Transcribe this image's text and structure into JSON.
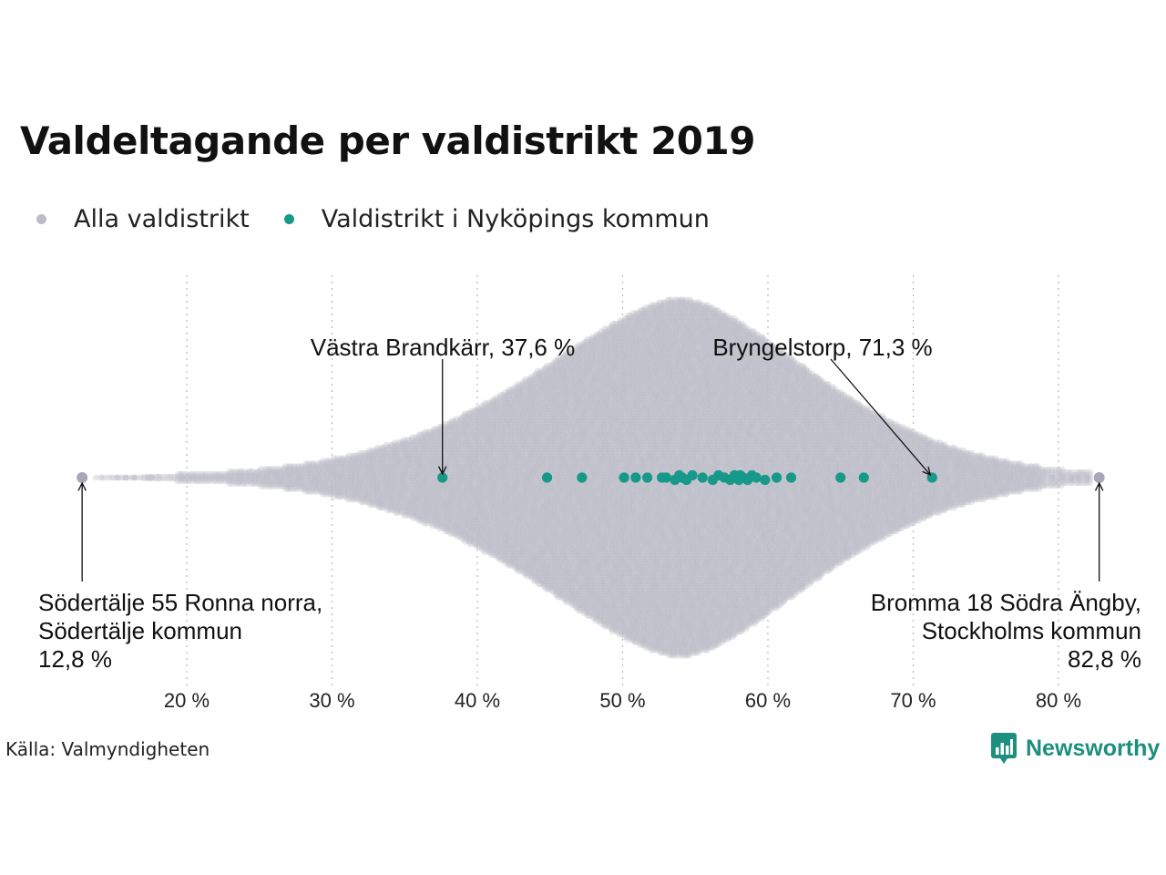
{
  "title": "Valdeltagande per valdistrikt 2019",
  "legend": [
    {
      "label": "Alla valdistrikt",
      "color": "#bdbcc9"
    },
    {
      "label": "Valdistrikt i Nyköpings kommun",
      "color": "#17998a"
    }
  ],
  "source": "Källa: Valmyndigheten",
  "brand": {
    "name": "Newsworthy",
    "icon": "bar-chart-logo-icon",
    "color": "#1d8f7e"
  },
  "chart_data": {
    "type": "scatter",
    "subtype": "beeswarm",
    "x_ticks": [
      20,
      30,
      40,
      50,
      60,
      70,
      80
    ],
    "x_tick_labels": [
      "20 %",
      "30 %",
      "40 %",
      "50 %",
      "60 %",
      "70 %",
      "80 %"
    ],
    "xlim": [
      10,
      85
    ],
    "grid": "vertical dotted",
    "series": [
      {
        "name": "Alla valdistrikt",
        "color": "#bdbcc9",
        "distribution": "approx. 6000 districts, peak near 54 %, range 12,8 – 82,8 %",
        "min": 12.8,
        "max": 82.8,
        "mode": 54
      },
      {
        "name": "Valdistrikt i Nyköpings kommun",
        "color": "#17998a",
        "values": [
          37.6,
          44.8,
          47.2,
          50.1,
          50.9,
          51.7,
          52.7,
          53.0,
          53.6,
          53.9,
          54.1,
          54.4,
          54.8,
          55.5,
          56.2,
          56.6,
          57.0,
          57.4,
          57.7,
          57.9,
          58.0,
          58.1,
          58.3,
          58.6,
          58.9,
          59.2,
          59.8,
          60.6,
          61.6,
          65.0,
          66.6,
          71.3
        ]
      }
    ],
    "annotations": [
      {
        "lines": [
          "Västra Brandkärr, 37,6 %"
        ],
        "value": 37.6,
        "position": "above"
      },
      {
        "lines": [
          "Bryngelstorp, 71,3 %"
        ],
        "value": 71.3,
        "position": "above"
      },
      {
        "lines": [
          "Södertälje 55 Ronna norra,",
          "Södertälje kommun",
          "12,8 %"
        ],
        "value": 12.8,
        "position": "below-left"
      },
      {
        "lines": [
          "Bromma 18 Södra Ängby,",
          "Stockholms kommun",
          "82,8 %"
        ],
        "value": 82.8,
        "position": "below-right"
      }
    ]
  }
}
